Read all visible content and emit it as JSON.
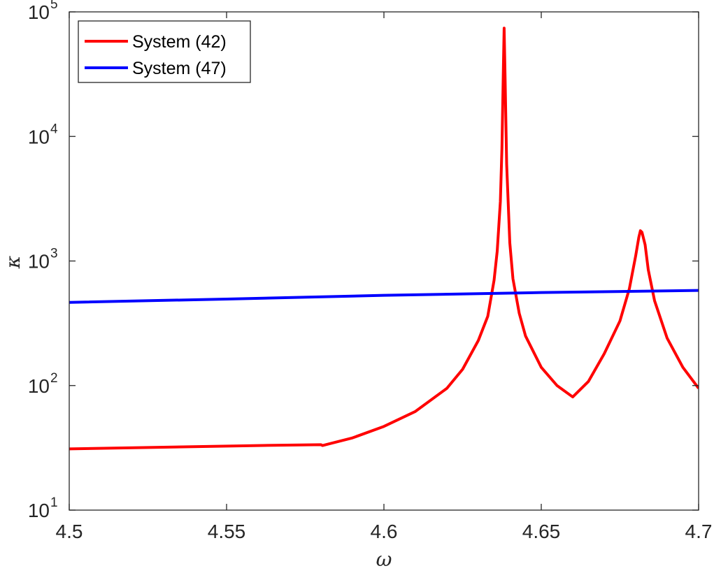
{
  "chart_data": {
    "type": "line",
    "title": "",
    "xlabel": "ω",
    "ylabel": "κ",
    "xlim": [
      4.5,
      4.7
    ],
    "ylim": [
      10,
      100000
    ],
    "yscale": "log",
    "grid": false,
    "legend_position": "top-left",
    "x_ticks": [
      4.5,
      4.55,
      4.6,
      4.65,
      4.7
    ],
    "x_tick_labels": [
      "4.5",
      "4.55",
      "4.6",
      "4.65",
      "4.7"
    ],
    "y_ticks": [
      10,
      100,
      1000,
      10000,
      100000
    ],
    "y_tick_labels": [
      {
        "base": "10",
        "exp": "1"
      },
      {
        "base": "10",
        "exp": "2"
      },
      {
        "base": "10",
        "exp": "3"
      },
      {
        "base": "10",
        "exp": "4"
      },
      {
        "base": "10",
        "exp": "5"
      }
    ],
    "series": [
      {
        "name": "System (42)",
        "color": "#ff0000",
        "points": [
          [
            4.5,
            31
          ],
          [
            4.53,
            32
          ],
          [
            4.56,
            33
          ],
          [
            4.58,
            33.5
          ],
          [
            4.5805,
            33
          ],
          [
            4.59,
            38
          ],
          [
            4.6,
            47
          ],
          [
            4.61,
            62
          ],
          [
            4.62,
            95
          ],
          [
            4.625,
            135
          ],
          [
            4.63,
            230
          ],
          [
            4.633,
            360
          ],
          [
            4.635,
            700
          ],
          [
            4.636,
            1200
          ],
          [
            4.637,
            3000
          ],
          [
            4.6375,
            8000
          ],
          [
            4.638,
            40000
          ],
          [
            4.6382,
            74000
          ],
          [
            4.6385,
            30000
          ],
          [
            4.639,
            6000
          ],
          [
            4.64,
            1400
          ],
          [
            4.641,
            720
          ],
          [
            4.643,
            380
          ],
          [
            4.645,
            250
          ],
          [
            4.65,
            140
          ],
          [
            4.655,
            100
          ],
          [
            4.66,
            81
          ],
          [
            4.665,
            108
          ],
          [
            4.67,
            180
          ],
          [
            4.675,
            330
          ],
          [
            4.678,
            600
          ],
          [
            4.68,
            1100
          ],
          [
            4.681,
            1550
          ],
          [
            4.6815,
            1750
          ],
          [
            4.682,
            1700
          ],
          [
            4.683,
            1350
          ],
          [
            4.684,
            850
          ],
          [
            4.686,
            480
          ],
          [
            4.69,
            240
          ],
          [
            4.695,
            140
          ],
          [
            4.7,
            95
          ]
        ]
      },
      {
        "name": "System (47)",
        "color": "#0000ff",
        "points": [
          [
            4.5,
            465
          ],
          [
            4.55,
            495
          ],
          [
            4.6,
            530
          ],
          [
            4.65,
            558
          ],
          [
            4.7,
            580
          ]
        ]
      }
    ]
  }
}
